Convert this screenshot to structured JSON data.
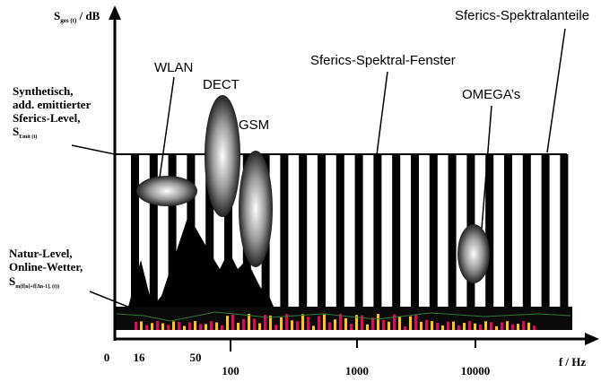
{
  "axis": {
    "y_label": {
      "main": "S",
      "sub": "ges (t)",
      "unit": " / dB"
    },
    "x_label": "f / Hz",
    "x_ticks": [
      "0",
      "16",
      "50",
      "100",
      "1000",
      "10000"
    ]
  },
  "left_labels": {
    "synthetic": {
      "lines": [
        "Synthetisch,",
        "add. emittierter",
        "Sferics-Level,"
      ],
      "symbol": "S",
      "sub": "Emit (t)"
    },
    "natural": {
      "lines": [
        "Natur-Level,",
        "Online-Wetter,"
      ],
      "symbol": "S",
      "sub": "m(f[n]+f[Δn-1], (t))"
    }
  },
  "annotations": {
    "wlan": "WLAN",
    "dect": "DECT",
    "gsm": "GSM",
    "omega": "OMEGA’s",
    "window": "Sferics-Spektral-Fenster",
    "components": "Sferics-Spektralanteile"
  }
}
